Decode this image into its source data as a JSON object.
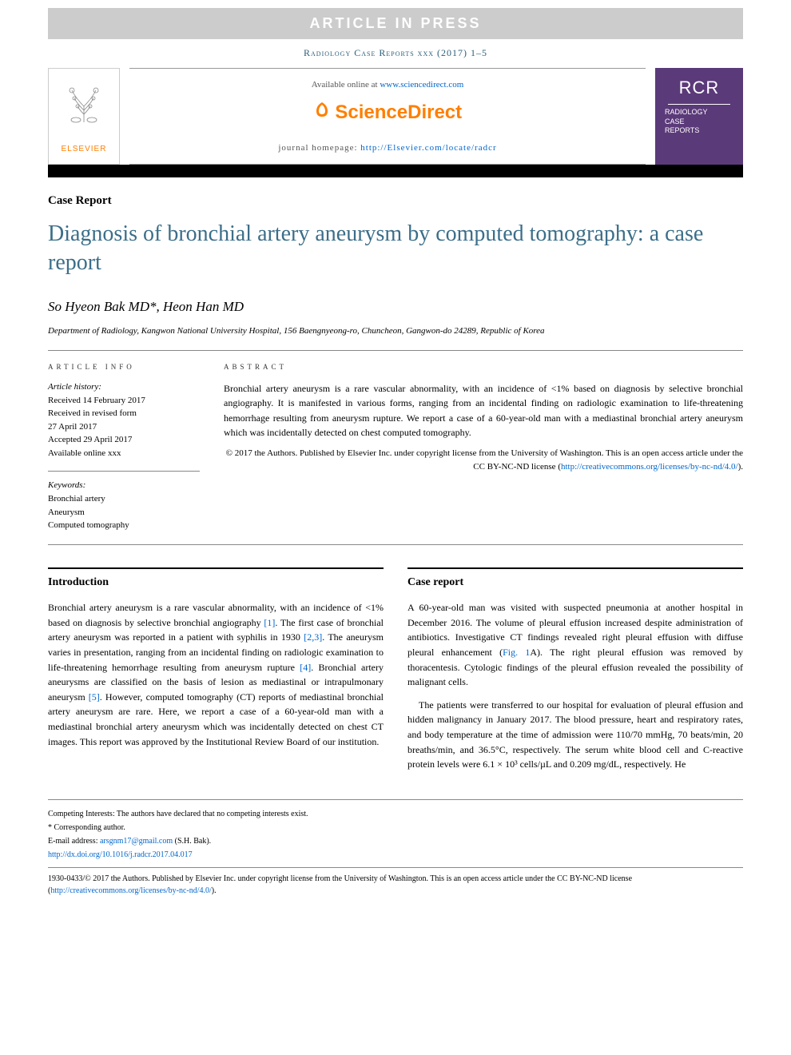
{
  "banner": {
    "inpress": "ARTICLE IN PRESS",
    "journal_ref": "Radiology Case Reports xxx (2017) 1–5"
  },
  "header": {
    "available_label": "Available online at ",
    "available_url": "www.sciencedirect.com",
    "sciencedirect": "ScienceDirect",
    "homepage_label": "journal homepage: ",
    "homepage_url": "http://Elsevier.com/locate/radcr",
    "elsevier": "ELSEVIER",
    "rcr_abbr": "RCR",
    "rcr_full_l1": "RADIOLOGY",
    "rcr_full_l2": "CASE",
    "rcr_full_l3": "REPORTS"
  },
  "article": {
    "type": "Case Report",
    "title": "Diagnosis of bronchial artery aneurysm by computed tomography: a case report",
    "authors": "So Hyeon Bak MD*, Heon Han MD",
    "affiliation": "Department of Radiology, Kangwon National University Hospital, 156 Baengnyeong-ro, Chuncheon, Gangwon-do 24289, Republic of Korea"
  },
  "info": {
    "heading_left": "ARTICLE INFO",
    "heading_right": "ABSTRACT",
    "history_label": "Article history:",
    "received": "Received 14 February 2017",
    "revised_l1": "Received in revised form",
    "revised_l2": "27 April 2017",
    "accepted": "Accepted 29 April 2017",
    "online": "Available online xxx",
    "keywords_label": "Keywords:",
    "kw1": "Bronchial artery",
    "kw2": "Aneurysm",
    "kw3": "Computed tomography"
  },
  "abstract": {
    "text": "Bronchial artery aneurysm is a rare vascular abnormality, with an incidence of <1% based on diagnosis by selective bronchial angiography. It is manifested in various forms, ranging from an incidental finding on radiologic examination to life-threatening hemorrhage resulting from aneurysm rupture. We report a case of a 60-year-old man with a mediastinal bronchial artery aneurysm which was incidentally detected on chest computed tomography.",
    "copyright": "© 2017 the Authors. Published by Elsevier Inc. under copyright license from the University of Washington. This is an open access article under the CC BY-NC-ND license (",
    "cc_url": "http://creativecommons.org/licenses/by-nc-nd/4.0/",
    "copyright_end": ")."
  },
  "sections": {
    "intro_heading": "Introduction",
    "intro_p1": "Bronchial artery aneurysm is a rare vascular abnormality, with an incidence of <1% based on diagnosis by selective bronchial angiography [1]. The first case of bronchial artery aneurysm was reported in a patient with syphilis in 1930 [2,3]. The aneurysm varies in presentation, ranging from an incidental finding on radiologic examination to life-threatening hemorrhage resulting from aneurysm rupture [4]. Bronchial artery aneurysms are classified on the basis of lesion as mediastinal or intrapulmonary aneurysm [5]. However, computed tomography (CT) reports of mediastinal bronchial artery aneurysm are rare. Here, we report a case of a 60-year-old man with a mediastinal bronchial artery aneurysm which was incidentally detected on chest CT images. This report was approved by the Institutional Review Board of our institution.",
    "case_heading": "Case report",
    "case_p1": "A 60-year-old man was visited with suspected pneumonia at another hospital in December 2016. The volume of pleural effusion increased despite administration of antibiotics. Investigative CT findings revealed right pleural effusion with diffuse pleural enhancement (Fig. 1A). The right pleural effusion was removed by thoracentesis. Cytologic findings of the pleural effusion revealed the possibility of malignant cells.",
    "case_p2": "The patients were transferred to our hospital for evaluation of pleural effusion and hidden malignancy in January 2017. The blood pressure, heart and respiratory rates, and body temperature at the time of admission were 110/70 mmHg, 70 beats/min, 20 breaths/min, and 36.5°C, respectively. The serum white blood cell and C-reactive protein levels were 6.1 × 10³ cells/µL and 0.209 mg/dL, respectively. He"
  },
  "footer": {
    "competing": "Competing Interests: The authors have declared that no competing interests exist.",
    "corr_label": "* Corresponding author.",
    "email_label": "E-mail address: ",
    "email": "arsgnm17@gmail.com",
    "email_author": " (S.H. Bak).",
    "doi": "http://dx.doi.org/10.1016/j.radcr.2017.04.017",
    "issn": "1930-0433/© 2017 the Authors. Published by Elsevier Inc. under copyright license from the University of Washington. This is an open access article under the CC BY-NC-ND license (",
    "cc_url": "http://creativecommons.org/licenses/by-nc-nd/4.0/",
    "issn_end": ")."
  },
  "colors": {
    "title": "#3b6e89",
    "link": "#0066cc",
    "orange": "#ff7f00",
    "purple": "#5b3a7a",
    "banner_bg": "#cccccc"
  }
}
